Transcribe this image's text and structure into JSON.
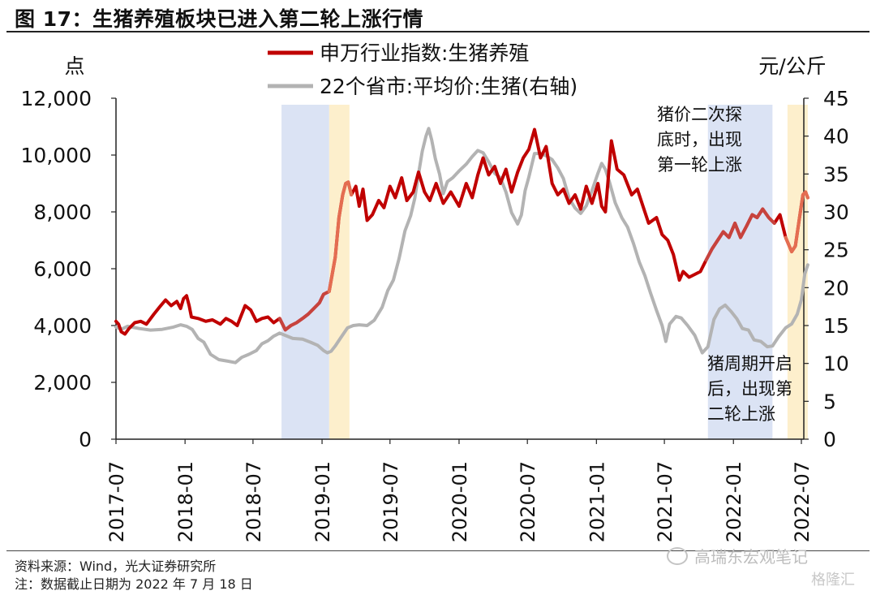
{
  "title": "图 17：生猪养殖板块已进入第二轮上涨行情",
  "source": "资料来源：Wind，光大证券研究所",
  "note": "注：数据截止日期为 2022 年 7 月 18 日",
  "watermark": "高瑞东宏观笔记",
  "logo": "格隆汇",
  "colors": {
    "sw_index": "#c00000",
    "sw_index_highlight": "#e8795a",
    "pig_price": "#b3b3b3",
    "shade_blue": "#dbe3f4",
    "shade_yellow": "#fdefcc"
  },
  "chart_data": {
    "type": "line",
    "left_axis_unit": "点",
    "right_axis_unit": "元/公斤",
    "ylim": [
      0,
      12000
    ],
    "y2lim": [
      0,
      45
    ],
    "y_ticks": [
      "0",
      "2,000",
      "4,000",
      "6,000",
      "8,000",
      "10,000",
      "12,000"
    ],
    "y2_ticks": [
      "0",
      "5",
      "10",
      "15",
      "20",
      "25",
      "30",
      "35",
      "40",
      "45"
    ],
    "x_ticks": [
      "2017-07",
      "2018-01",
      "2018-07",
      "2019-01",
      "2019-07",
      "2020-01",
      "2020-07",
      "2021-01",
      "2021-07",
      "2022-01",
      "2022-07"
    ],
    "legend": [
      {
        "label": "申万行业指数:生猪养殖",
        "series": "sw_index"
      },
      {
        "label": "22个省市:平均价:生猪(右轴)",
        "series": "pig_price"
      }
    ],
    "annotations": [
      {
        "text": [
          "猪价二次探",
          "底时，出现",
          "第一轮上涨"
        ]
      },
      {
        "text": [
          "猪周期开启",
          "后，出现第",
          "二轮上涨"
        ]
      }
    ],
    "shaded_periods": [
      {
        "start": "2018-09-15",
        "end": "2019-01-20",
        "color": "blue"
      },
      {
        "start": "2019-01-20",
        "end": "2019-03-15",
        "color": "yellow"
      },
      {
        "start": "2021-10-25",
        "end": "2022-04-15",
        "color": "blue"
      },
      {
        "start": "2022-05-25",
        "end": "2022-07-18",
        "color": "yellow"
      }
    ],
    "series": [
      {
        "name": "申万行业指数:生猪养殖",
        "axis": "left",
        "points": [
          [
            "2017-07-01",
            4150
          ],
          [
            "2017-07-08",
            4050
          ],
          [
            "2017-07-15",
            3780
          ],
          [
            "2017-07-25",
            3700
          ],
          [
            "2017-08-05",
            3900
          ],
          [
            "2017-08-20",
            4100
          ],
          [
            "2017-09-05",
            4150
          ],
          [
            "2017-09-20",
            4050
          ],
          [
            "2017-10-10",
            4400
          ],
          [
            "2017-10-25",
            4650
          ],
          [
            "2017-11-10",
            4900
          ],
          [
            "2017-11-25",
            4700
          ],
          [
            "2017-12-10",
            4850
          ],
          [
            "2017-12-20",
            4600
          ],
          [
            "2017-12-28",
            4950
          ],
          [
            "2018-01-05",
            5050
          ],
          [
            "2018-01-12",
            4700
          ],
          [
            "2018-01-18",
            4300
          ],
          [
            "2018-02-05",
            4250
          ],
          [
            "2018-02-25",
            4150
          ],
          [
            "2018-03-15",
            4200
          ],
          [
            "2018-04-05",
            4050
          ],
          [
            "2018-04-20",
            4250
          ],
          [
            "2018-05-05",
            4150
          ],
          [
            "2018-05-20",
            4000
          ],
          [
            "2018-06-10",
            4700
          ],
          [
            "2018-06-25",
            4550
          ],
          [
            "2018-07-10",
            4150
          ],
          [
            "2018-07-25",
            4250
          ],
          [
            "2018-08-10",
            4300
          ],
          [
            "2018-08-25",
            4100
          ],
          [
            "2018-09-10",
            4250
          ],
          [
            "2018-09-25",
            3850
          ],
          [
            "2018-10-10",
            4000
          ],
          [
            "2018-10-25",
            4100
          ],
          [
            "2018-11-10",
            4250
          ],
          [
            "2018-11-25",
            4400
          ],
          [
            "2018-12-10",
            4600
          ],
          [
            "2018-12-25",
            4800
          ],
          [
            "2019-01-05",
            5100
          ],
          [
            "2019-01-20",
            5200
          ],
          [
            "2019-02-05",
            6400
          ],
          [
            "2019-02-15",
            7800
          ],
          [
            "2019-02-25",
            8600
          ],
          [
            "2019-03-05",
            9000
          ],
          [
            "2019-03-12",
            9050
          ],
          [
            "2019-03-20",
            8600
          ],
          [
            "2019-04-01",
            8900
          ],
          [
            "2019-04-10",
            8200
          ],
          [
            "2019-04-20",
            8800
          ],
          [
            "2019-05-01",
            7700
          ],
          [
            "2019-05-15",
            7900
          ],
          [
            "2019-06-01",
            8400
          ],
          [
            "2019-06-15",
            8150
          ],
          [
            "2019-07-01",
            8900
          ],
          [
            "2019-07-15",
            8500
          ],
          [
            "2019-08-01",
            9200
          ],
          [
            "2019-08-15",
            8400
          ],
          [
            "2019-09-01",
            8700
          ],
          [
            "2019-09-15",
            9400
          ],
          [
            "2019-10-01",
            8700
          ],
          [
            "2019-10-15",
            8400
          ],
          [
            "2019-11-01",
            9000
          ],
          [
            "2019-11-20",
            8300
          ],
          [
            "2019-12-10",
            8700
          ],
          [
            "2020-01-01",
            8200
          ],
          [
            "2020-01-20",
            9000
          ],
          [
            "2020-02-05",
            8500
          ],
          [
            "2020-02-20",
            9300
          ],
          [
            "2020-03-05",
            9900
          ],
          [
            "2020-03-20",
            9300
          ],
          [
            "2020-04-05",
            9600
          ],
          [
            "2020-04-20",
            9000
          ],
          [
            "2020-05-05",
            9500
          ],
          [
            "2020-05-20",
            8700
          ],
          [
            "2020-06-05",
            9400
          ],
          [
            "2020-06-20",
            9900
          ],
          [
            "2020-07-05",
            10200
          ],
          [
            "2020-07-20",
            10900
          ],
          [
            "2020-08-05",
            9900
          ],
          [
            "2020-08-20",
            10300
          ],
          [
            "2020-09-05",
            9000
          ],
          [
            "2020-09-20",
            8600
          ],
          [
            "2020-10-05",
            8800
          ],
          [
            "2020-10-20",
            8300
          ],
          [
            "2020-11-05",
            8600
          ],
          [
            "2020-11-20",
            8100
          ],
          [
            "2020-12-05",
            8900
          ],
          [
            "2020-12-20",
            8300
          ],
          [
            "2021-01-05",
            9000
          ],
          [
            "2021-01-15",
            8200
          ],
          [
            "2021-01-25",
            8000
          ],
          [
            "2021-02-10",
            10500
          ],
          [
            "2021-02-25",
            9500
          ],
          [
            "2021-03-15",
            9300
          ],
          [
            "2021-04-05",
            8600
          ],
          [
            "2021-04-20",
            8800
          ],
          [
            "2021-05-05",
            8200
          ],
          [
            "2021-05-20",
            7600
          ],
          [
            "2021-06-10",
            7800
          ],
          [
            "2021-06-25",
            7200
          ],
          [
            "2021-07-10",
            7000
          ],
          [
            "2021-07-25",
            6500
          ],
          [
            "2021-08-10",
            5600
          ],
          [
            "2021-08-20",
            5900
          ],
          [
            "2021-09-05",
            5700
          ],
          [
            "2021-09-20",
            5800
          ],
          [
            "2021-10-05",
            5900
          ],
          [
            "2021-10-20",
            6300
          ],
          [
            "2021-11-05",
            6700
          ],
          [
            "2021-11-20",
            7000
          ],
          [
            "2021-12-05",
            7300
          ],
          [
            "2021-12-20",
            7100
          ],
          [
            "2022-01-05",
            7600
          ],
          [
            "2022-01-20",
            7100
          ],
          [
            "2022-02-05",
            7500
          ],
          [
            "2022-02-20",
            7900
          ],
          [
            "2022-03-05",
            7800
          ],
          [
            "2022-03-20",
            8100
          ],
          [
            "2022-04-05",
            7800
          ],
          [
            "2022-04-20",
            7600
          ],
          [
            "2022-05-05",
            7900
          ],
          [
            "2022-05-20",
            7100
          ],
          [
            "2022-06-05",
            6600
          ],
          [
            "2022-06-15",
            6800
          ],
          [
            "2022-06-25",
            7700
          ],
          [
            "2022-07-05",
            8600
          ],
          [
            "2022-07-12",
            8700
          ],
          [
            "2022-07-18",
            8500
          ]
        ]
      },
      {
        "name": "22个省市:平均价:生猪",
        "axis": "right",
        "points": [
          [
            "2017-07-01",
            14.8
          ],
          [
            "2017-07-15",
            14.5
          ],
          [
            "2017-08-01",
            14.9
          ],
          [
            "2017-09-01",
            14.6
          ],
          [
            "2017-10-01",
            14.4
          ],
          [
            "2017-11-01",
            14.5
          ],
          [
            "2017-12-01",
            14.8
          ],
          [
            "2017-12-20",
            15.1
          ],
          [
            "2018-01-05",
            14.9
          ],
          [
            "2018-01-20",
            14.5
          ],
          [
            "2018-02-05",
            13.3
          ],
          [
            "2018-02-20",
            12.8
          ],
          [
            "2018-03-10",
            11.2
          ],
          [
            "2018-04-01",
            10.5
          ],
          [
            "2018-04-25",
            10.3
          ],
          [
            "2018-05-15",
            10.1
          ],
          [
            "2018-06-01",
            10.8
          ],
          [
            "2018-06-20",
            11.2
          ],
          [
            "2018-07-10",
            11.7
          ],
          [
            "2018-07-25",
            12.6
          ],
          [
            "2018-08-10",
            13.0
          ],
          [
            "2018-08-25",
            13.6
          ],
          [
            "2018-09-10",
            14.0
          ],
          [
            "2018-09-25",
            13.7
          ],
          [
            "2018-10-15",
            13.3
          ],
          [
            "2018-11-10",
            13.2
          ],
          [
            "2018-12-01",
            12.8
          ],
          [
            "2018-12-20",
            12.4
          ],
          [
            "2019-01-05",
            11.7
          ],
          [
            "2019-01-15",
            11.4
          ],
          [
            "2019-01-25",
            11.6
          ],
          [
            "2019-02-05",
            12.3
          ],
          [
            "2019-02-20",
            13.4
          ],
          [
            "2019-03-10",
            14.7
          ],
          [
            "2019-03-25",
            15.0
          ],
          [
            "2019-04-10",
            15.1
          ],
          [
            "2019-05-01",
            15.0
          ],
          [
            "2019-05-20",
            15.7
          ],
          [
            "2019-06-10",
            17.4
          ],
          [
            "2019-06-25",
            19.6
          ],
          [
            "2019-07-10",
            21.0
          ],
          [
            "2019-07-25",
            23.8
          ],
          [
            "2019-08-10",
            27.5
          ],
          [
            "2019-08-25",
            29.5
          ],
          [
            "2019-09-05",
            31.8
          ],
          [
            "2019-09-15",
            35.0
          ],
          [
            "2019-09-25",
            38.0
          ],
          [
            "2019-10-05",
            40.0
          ],
          [
            "2019-10-12",
            41.0
          ],
          [
            "2019-10-20",
            39.5
          ],
          [
            "2019-10-30",
            37.0
          ],
          [
            "2019-11-10",
            35.0
          ],
          [
            "2019-11-20",
            32.4
          ],
          [
            "2019-12-01",
            34.0
          ],
          [
            "2019-12-15",
            34.5
          ],
          [
            "2020-01-01",
            35.4
          ],
          [
            "2020-01-20",
            36.3
          ],
          [
            "2020-02-05",
            37.3
          ],
          [
            "2020-02-20",
            38.1
          ],
          [
            "2020-03-05",
            37.8
          ],
          [
            "2020-03-20",
            36.6
          ],
          [
            "2020-04-05",
            35.1
          ],
          [
            "2020-04-20",
            34.5
          ],
          [
            "2020-05-05",
            32.6
          ],
          [
            "2020-05-20",
            29.9
          ],
          [
            "2020-06-05",
            28.4
          ],
          [
            "2020-06-15",
            29.6
          ],
          [
            "2020-06-25",
            32.8
          ],
          [
            "2020-07-05",
            34.6
          ],
          [
            "2020-07-20",
            37.7
          ],
          [
            "2020-08-05",
            37.7
          ],
          [
            "2020-08-20",
            37.4
          ],
          [
            "2020-09-05",
            36.9
          ],
          [
            "2020-09-20",
            35.8
          ],
          [
            "2020-10-05",
            34.4
          ],
          [
            "2020-10-20",
            31.8
          ],
          [
            "2020-11-05",
            30.5
          ],
          [
            "2020-11-20",
            29.8
          ],
          [
            "2020-12-05",
            30.8
          ],
          [
            "2020-12-20",
            32.8
          ],
          [
            "2021-01-05",
            35.1
          ],
          [
            "2021-01-15",
            36.4
          ],
          [
            "2021-01-25",
            35.6
          ],
          [
            "2021-02-05",
            33.9
          ],
          [
            "2021-02-20",
            31.2
          ],
          [
            "2021-03-10",
            29.2
          ],
          [
            "2021-03-25",
            28.0
          ],
          [
            "2021-04-10",
            25.8
          ],
          [
            "2021-04-25",
            23.4
          ],
          [
            "2021-05-10",
            21.6
          ],
          [
            "2021-05-25",
            19.3
          ],
          [
            "2021-06-10",
            17.0
          ],
          [
            "2021-06-25",
            15.0
          ],
          [
            "2021-07-05",
            12.9
          ],
          [
            "2021-07-15",
            15.2
          ],
          [
            "2021-08-01",
            16.2
          ],
          [
            "2021-08-15",
            16.0
          ],
          [
            "2021-09-01",
            15.0
          ],
          [
            "2021-09-20",
            13.7
          ],
          [
            "2021-10-10",
            11.4
          ],
          [
            "2021-10-25",
            12.2
          ],
          [
            "2021-11-10",
            15.8
          ],
          [
            "2021-11-25",
            17.2
          ],
          [
            "2021-12-10",
            17.7
          ],
          [
            "2021-12-25",
            16.9
          ],
          [
            "2022-01-10",
            15.9
          ],
          [
            "2022-01-25",
            14.6
          ],
          [
            "2022-02-10",
            14.4
          ],
          [
            "2022-02-25",
            13.1
          ],
          [
            "2022-03-15",
            12.9
          ],
          [
            "2022-04-01",
            12.2
          ],
          [
            "2022-04-15",
            12.3
          ],
          [
            "2022-05-01",
            13.5
          ],
          [
            "2022-05-20",
            14.7
          ],
          [
            "2022-06-05",
            15.2
          ],
          [
            "2022-06-20",
            16.5
          ],
          [
            "2022-07-01",
            18.4
          ],
          [
            "2022-07-10",
            21.8
          ],
          [
            "2022-07-18",
            23.0
          ]
        ]
      }
    ]
  }
}
